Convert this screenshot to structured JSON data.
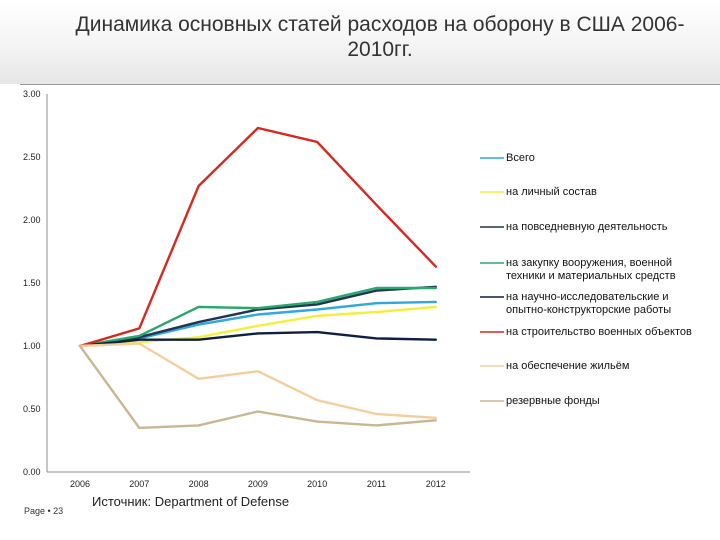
{
  "title": "Динамика основных статей расходов на оборону  в США 2006-2010гг.",
  "title_lines": [
    "Динамика основных статей расходов на оборону  в США 2006-",
    "2010гг."
  ],
  "page_label": "Page • 23",
  "source": "Источник: Department of Defense",
  "chart_data": {
    "type": "line",
    "title": "Динамика основных статей расходов на оборону  в США 2006-2010гг.",
    "xlabel": "",
    "ylabel": "",
    "x": [
      "2006",
      "2007",
      "2008",
      "2009",
      "2010",
      "2011",
      "2012"
    ],
    "yticks": [
      "0.00",
      "0.50",
      "1.00",
      "1.50",
      "2.00",
      "2.50",
      "3.00"
    ],
    "ylim": [
      0,
      3
    ],
    "grid": false,
    "legend_position": "right",
    "series": [
      {
        "name": "Всего",
        "color": "#2fa8e0",
        "values": [
          1.0,
          1.06,
          1.17,
          1.25,
          1.29,
          1.34,
          1.35
        ],
        "legend_lines": [
          "Всего"
        ]
      },
      {
        "name": "на личный состав",
        "color": "#f5ef3c",
        "values": [
          1.0,
          1.03,
          1.07,
          1.16,
          1.24,
          1.27,
          1.31
        ],
        "legend_lines": [
          "на личный состав"
        ]
      },
      {
        "name": "на повседневную деятельность",
        "color": "#1f3550",
        "values": [
          1.0,
          1.07,
          1.19,
          1.29,
          1.33,
          1.44,
          1.47
        ],
        "legend_lines": [
          "на повседневную деятельность"
        ]
      },
      {
        "name": "на закупку вооружения, военной техники и материальных средств",
        "color": "#28a86b",
        "values": [
          1.0,
          1.08,
          1.31,
          1.3,
          1.35,
          1.46,
          1.46
        ],
        "legend_lines": [
          "на закупку вооружения, военной",
          "техники и материальных средств"
        ]
      },
      {
        "name": "на научно-исследовательские и опытно-конструкторские работы",
        "color": "#0e1e45",
        "values": [
          1.0,
          1.05,
          1.05,
          1.1,
          1.11,
          1.06,
          1.05
        ],
        "legend_lines": [
          "на научно-исследовательские и",
          "опытно-конструкторские работы"
        ]
      },
      {
        "name": "на строительство военных объектов",
        "color": "#d42a22",
        "values": [
          1.0,
          1.14,
          2.27,
          2.73,
          2.62,
          2.12,
          1.63
        ],
        "legend_lines": [
          "на строительство военных объектов"
        ]
      },
      {
        "name": "на обеспечение жильём",
        "color": "#f2cf9c",
        "values": [
          1.0,
          1.02,
          0.74,
          0.8,
          0.57,
          0.46,
          0.43
        ],
        "legend_lines": [
          "на обеспечение жильём"
        ]
      },
      {
        "name": "резервные фонды",
        "color": "#cbb693",
        "values": [
          1.0,
          0.35,
          0.37,
          0.48,
          0.4,
          0.37,
          0.41
        ],
        "legend_lines": [
          "резервные фонды"
        ]
      }
    ]
  }
}
